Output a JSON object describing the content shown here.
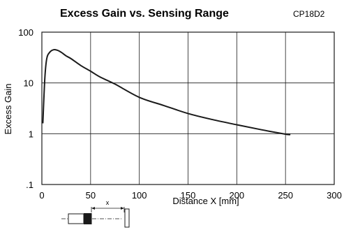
{
  "chart_data": {
    "type": "line",
    "title": "Excess Gain vs. Sensing Range",
    "model": "CP18D2",
    "xlabel": "Distance X [mm]",
    "ylabel": "Excess Gain",
    "xlim": [
      0,
      300
    ],
    "ylim": [
      0.1,
      100
    ],
    "yscale": "log",
    "grid": true,
    "x_ticks": [
      "0",
      "50",
      "100",
      "150",
      "200",
      "250",
      "300"
    ],
    "y_ticks": [
      ".1",
      "1",
      "10",
      "100"
    ],
    "series": [
      {
        "x": [
          1,
          3,
          5,
          8,
          12,
          16,
          20,
          25,
          30,
          40,
          50,
          60,
          75,
          100,
          125,
          150,
          175,
          200,
          225,
          250,
          255
        ],
        "y": [
          1.6,
          12,
          30,
          40,
          45,
          44,
          40,
          34,
          30,
          22,
          17,
          13,
          9.5,
          5.2,
          3.6,
          2.5,
          1.9,
          1.5,
          1.2,
          0.98,
          0.96
        ]
      }
    ]
  },
  "diagram": {
    "distance_label": "x"
  }
}
